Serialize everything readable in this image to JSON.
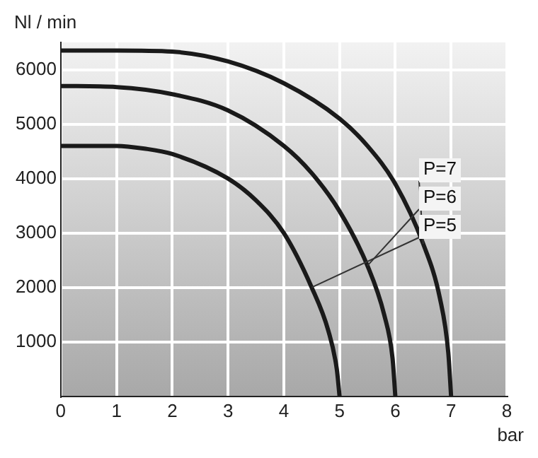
{
  "chart_data": {
    "type": "line",
    "xlabel": "bar",
    "ylabel": "Nl / min",
    "xlim": [
      0,
      8
    ],
    "xticks": [
      0,
      1,
      2,
      3,
      4,
      5,
      6,
      7,
      8
    ],
    "ylim": [
      0,
      6500
    ],
    "yticks": [
      1000,
      2000,
      3000,
      4000,
      5000,
      6000
    ],
    "grid": true,
    "legend": false,
    "marker": "none",
    "line_style": "solid",
    "series": [
      {
        "name": "P=7",
        "color": "#1a1a1a",
        "x": [
          0,
          1,
          2,
          3,
          4,
          5,
          5.5,
          6,
          6.5,
          6.8,
          6.95,
          7
        ],
        "values": [
          6350,
          6350,
          6330,
          6150,
          5750,
          5100,
          4600,
          3900,
          2800,
          1800,
          800,
          0
        ]
      },
      {
        "name": "P=6",
        "color": "#1a1a1a",
        "x": [
          0,
          1,
          2,
          3,
          4,
          4.5,
          5,
          5.5,
          5.8,
          5.95,
          6
        ],
        "values": [
          5700,
          5680,
          5550,
          5250,
          4600,
          4100,
          3400,
          2400,
          1500,
          700,
          0
        ]
      },
      {
        "name": "P=5",
        "color": "#1a1a1a",
        "x": [
          0,
          1,
          1.5,
          2,
          3,
          3.5,
          4,
          4.5,
          4.8,
          4.95,
          5
        ],
        "values": [
          4600,
          4600,
          4550,
          4450,
          4000,
          3600,
          3000,
          2000,
          1200,
          500,
          0
        ]
      }
    ]
  }
}
